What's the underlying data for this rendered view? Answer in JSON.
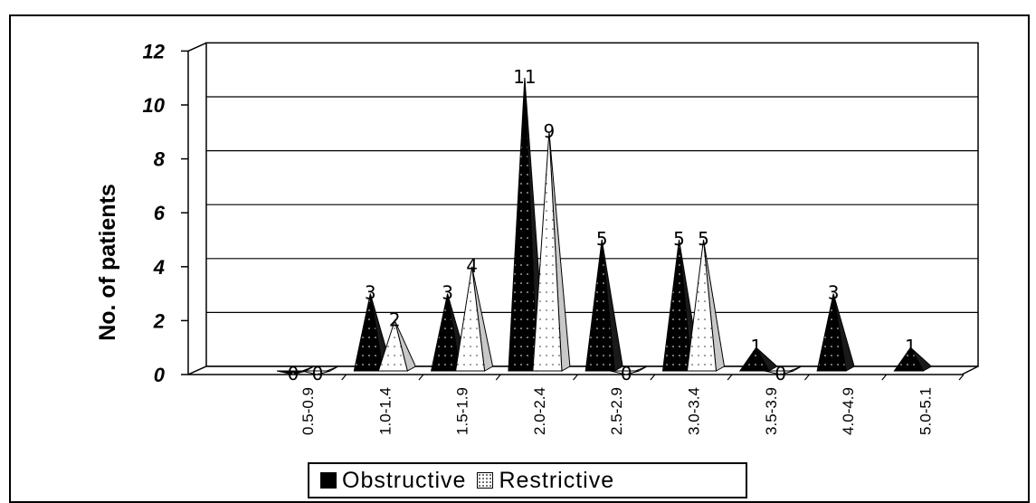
{
  "chart_data": {
    "type": "bar",
    "categories": [
      "0.5-0.9",
      "1.0-1.4",
      "1.5-1.9",
      "2.0-2.4",
      "2.5-2.9",
      "3.0-3.4",
      "3.5-3.9",
      "4.0-4.9",
      "5.0-5.1"
    ],
    "series": [
      {
        "name": "Obstructive",
        "values": [
          0,
          3,
          3,
          11,
          5,
          5,
          1,
          3,
          1
        ],
        "data_labels": [
          "0",
          "3",
          "3",
          "11",
          "5",
          "5",
          "1",
          "3",
          "1"
        ]
      },
      {
        "name": "Restrictive",
        "values": [
          0,
          2,
          4,
          9,
          0,
          5,
          0,
          null,
          null
        ],
        "data_labels": [
          "0",
          "2",
          "4",
          "9",
          "0",
          "5",
          "0",
          null,
          null
        ]
      }
    ],
    "ylabel": "No. of patients",
    "ylim": [
      0,
      12
    ],
    "yticks": [
      "0",
      "2",
      "4",
      "6",
      "8",
      "10",
      "12"
    ],
    "grid": true,
    "legend_position": "bottom",
    "colors": {
      "obstructive": "#000000",
      "restrictive": "#ffffff",
      "gridline": "#000000"
    }
  }
}
